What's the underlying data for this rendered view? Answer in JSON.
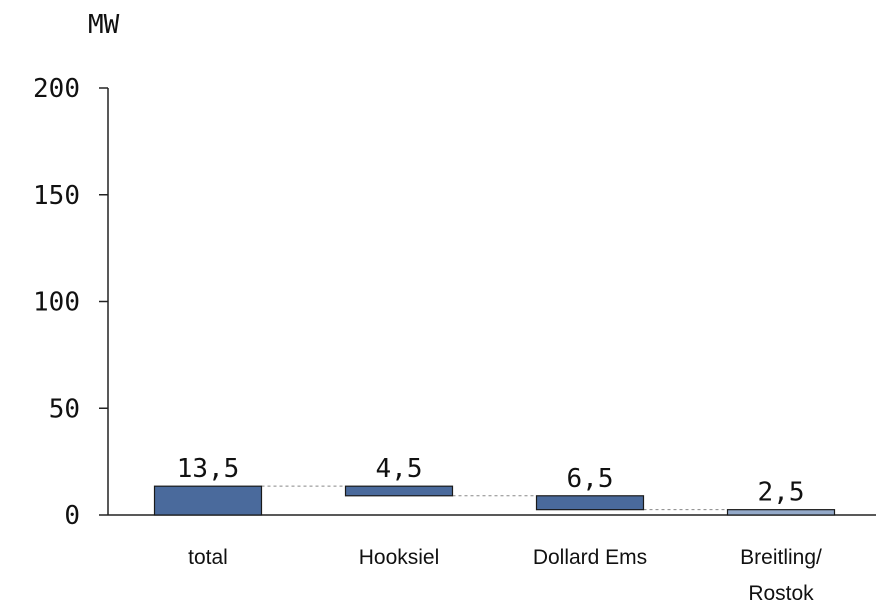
{
  "chart_data": {
    "type": "bar",
    "subtype": "waterfall",
    "unit_label": "MW",
    "categories": [
      "total",
      [
        "Hooksiel"
      ],
      [
        "Dollard Ems"
      ],
      [
        "Breitling/",
        "Rostok"
      ]
    ],
    "bars": [
      {
        "category": "total",
        "value_label": "13,5",
        "start": 0,
        "end": 13.5,
        "color": "#4a6a9c"
      },
      {
        "category": "Hooksiel",
        "value_label": "4,5",
        "start": 9.0,
        "end": 13.5,
        "color": "#4a6a9c"
      },
      {
        "category": "Dollard Ems",
        "value_label": "6,5",
        "start": 2.5,
        "end": 9.0,
        "color": "#4a6a9c"
      },
      {
        "category": "Breitling/ Rostok",
        "value_label": "2,5",
        "start": 0,
        "end": 2.5,
        "color": "#93a9c9"
      }
    ],
    "y_ticks": [
      "0",
      "50",
      "100",
      "150",
      "200"
    ],
    "ylim": [
      0,
      200
    ],
    "grid": false,
    "connector_lines": true
  }
}
